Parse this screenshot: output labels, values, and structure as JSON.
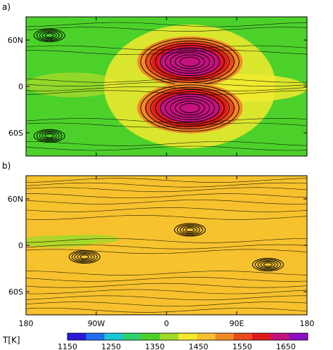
{
  "chart_data": [
    {
      "type": "heatmap",
      "panel_label": "a)",
      "xlim": [
        -180,
        180
      ],
      "ylim": [
        -90,
        90
      ],
      "x_ticks": [
        {
          "value": -180,
          "label": "180"
        },
        {
          "value": -90,
          "label": "90W"
        },
        {
          "value": 0,
          "label": "0"
        },
        {
          "value": 90,
          "label": "90E"
        },
        {
          "value": 180,
          "label": "180"
        }
      ],
      "y_ticks": [
        {
          "value": 60,
          "label": "60N"
        },
        {
          "value": 0,
          "label": "0"
        },
        {
          "value": -60,
          "label": "60S"
        }
      ],
      "background_temperature_K": 1330,
      "features": [
        {
          "kind": "hot-gyre",
          "lon": 30,
          "lat": 32,
          "peak_K": 1640
        },
        {
          "kind": "hot-gyre",
          "lon": 30,
          "lat": -28,
          "peak_K": 1640
        },
        {
          "kind": "vortex",
          "lon": -150,
          "lat": 66
        },
        {
          "kind": "vortex",
          "lon": -150,
          "lat": -64
        }
      ]
    },
    {
      "type": "heatmap",
      "panel_label": "b)",
      "xlim": [
        -180,
        180
      ],
      "ylim": [
        -90,
        90
      ],
      "x_ticks": [
        {
          "value": -180,
          "label": "180"
        },
        {
          "value": -90,
          "label": "90W"
        },
        {
          "value": 0,
          "label": "0"
        },
        {
          "value": 90,
          "label": "90E"
        },
        {
          "value": 180,
          "label": "180"
        }
      ],
      "y_ticks": [
        {
          "value": 60,
          "label": "60N"
        },
        {
          "value": 0,
          "label": "0"
        },
        {
          "value": -60,
          "label": "60S"
        }
      ],
      "background_temperature_K": 1465,
      "features": [
        {
          "kind": "vortex",
          "lon": 30,
          "lat": 20
        },
        {
          "kind": "vortex",
          "lon": -105,
          "lat": -15
        },
        {
          "kind": "vortex",
          "lon": 130,
          "lat": -25
        }
      ]
    }
  ],
  "colorbar": {
    "label": "T[K]",
    "min": 1150,
    "max": 1700,
    "tick_values": [
      1150,
      1250,
      1350,
      1450,
      1550,
      1650
    ],
    "tick_labels": [
      "1150",
      "1250",
      "1350",
      "1450",
      "1550",
      "1650"
    ],
    "colors": [
      "#2a1ad8",
      "#1f6ff0",
      "#19c6d6",
      "#2fd16a",
      "#4cd12b",
      "#9fd92a",
      "#f2ea2e",
      "#f6c12d",
      "#f28a24",
      "#ea4a1c",
      "#e01a1a",
      "#c4127e",
      "#8d10c2"
    ]
  }
}
